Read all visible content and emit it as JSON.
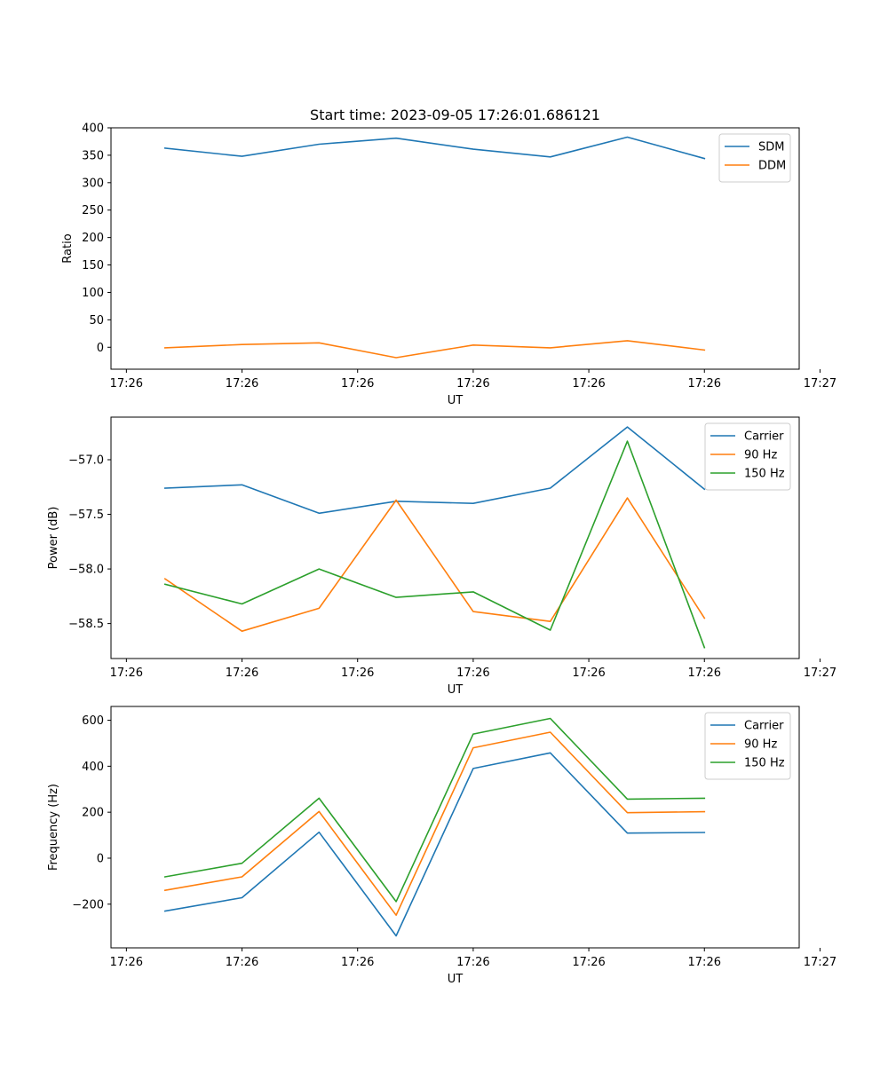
{
  "figure": {
    "title": "Start time: 2023-09-05 17:26:01.686121"
  },
  "colors": {
    "SDM": "#1f77b4",
    "DDM": "#ff7f0e",
    "Carrier": "#1f77b4",
    "90 Hz": "#ff7f0e",
    "150 Hz": "#2ca02c"
  },
  "chart_data": [
    {
      "type": "line",
      "title": "Start time: 2023-09-05 17:26:01.686121",
      "xlabel": "UT",
      "ylabel": "Ratio",
      "x": [
        1,
        2,
        3,
        4,
        5,
        6,
        7,
        8
      ],
      "xlim": [
        0.3,
        9.23
      ],
      "x_ticks": [
        0.5,
        2,
        3.5,
        5,
        6.5,
        8,
        9.5
      ],
      "x_tick_labels": [
        "17:26",
        "17:26",
        "17:26",
        "17:26",
        "17:26",
        "17:26",
        "17:27"
      ],
      "ylim": [
        -40,
        400
      ],
      "y_ticks": [
        0,
        50,
        100,
        150,
        200,
        250,
        300,
        350,
        400
      ],
      "y_tick_labels": [
        "0",
        "50",
        "100",
        "150",
        "200",
        "250",
        "300",
        "350",
        "400"
      ],
      "legend": "top-right",
      "series": [
        {
          "name": "SDM",
          "values": [
            363,
            348,
            370,
            381,
            361,
            347,
            383,
            344
          ]
        },
        {
          "name": "DDM",
          "values": [
            -1,
            5,
            8,
            -19,
            4,
            -1,
            12,
            -5
          ]
        }
      ]
    },
    {
      "type": "line",
      "title": "",
      "xlabel": "UT",
      "ylabel": "Power (dB)",
      "x": [
        1,
        2,
        3,
        4,
        5,
        6,
        7,
        8
      ],
      "xlim": [
        0.3,
        9.23
      ],
      "x_ticks": [
        0.5,
        2,
        3.5,
        5,
        6.5,
        8,
        9.5
      ],
      "x_tick_labels": [
        "17:26",
        "17:26",
        "17:26",
        "17:26",
        "17:26",
        "17:26",
        "17:27"
      ],
      "ylim": [
        -58.82,
        -56.61
      ],
      "y_ticks": [
        -58.5,
        -58.0,
        -57.5,
        -57.0
      ],
      "y_tick_labels": [
        "−58.5",
        "−58.0",
        "−57.5",
        "−57.0"
      ],
      "legend": "top-right",
      "series": [
        {
          "name": "Carrier",
          "values": [
            -57.26,
            -57.23,
            -57.49,
            -57.38,
            -57.4,
            -57.26,
            -56.7,
            -57.27
          ]
        },
        {
          "name": "90 Hz",
          "values": [
            -58.09,
            -58.57,
            -58.36,
            -57.37,
            -58.39,
            -58.48,
            -57.35,
            -58.45
          ]
        },
        {
          "name": "150 Hz",
          "values": [
            -58.14,
            -58.32,
            -58.0,
            -58.26,
            -58.21,
            -58.56,
            -56.83,
            -58.72
          ]
        }
      ]
    },
    {
      "type": "line",
      "title": "",
      "xlabel": "UT",
      "ylabel": "Frequency (Hz)",
      "x": [
        1,
        2,
        3,
        4,
        5,
        6,
        7,
        8
      ],
      "xlim": [
        0.3,
        9.23
      ],
      "x_ticks": [
        0.5,
        2,
        3.5,
        5,
        6.5,
        8,
        9.5
      ],
      "x_tick_labels": [
        "17:26",
        "17:26",
        "17:26",
        "17:26",
        "17:26",
        "17:26",
        "17:27"
      ],
      "ylim": [
        -390,
        660
      ],
      "y_ticks": [
        -200,
        0,
        200,
        400,
        600
      ],
      "y_tick_labels": [
        "−200",
        "0",
        "200",
        "400",
        "600"
      ],
      "legend": "top-right",
      "series": [
        {
          "name": "Carrier",
          "values": [
            -230,
            -172,
            113,
            -338,
            390,
            458,
            109,
            112
          ]
        },
        {
          "name": "90 Hz",
          "values": [
            -140,
            -81,
            203,
            -248,
            480,
            548,
            198,
            202
          ]
        },
        {
          "name": "150 Hz",
          "values": [
            -81,
            -22,
            261,
            -189,
            540,
            608,
            257,
            261
          ]
        }
      ]
    }
  ]
}
